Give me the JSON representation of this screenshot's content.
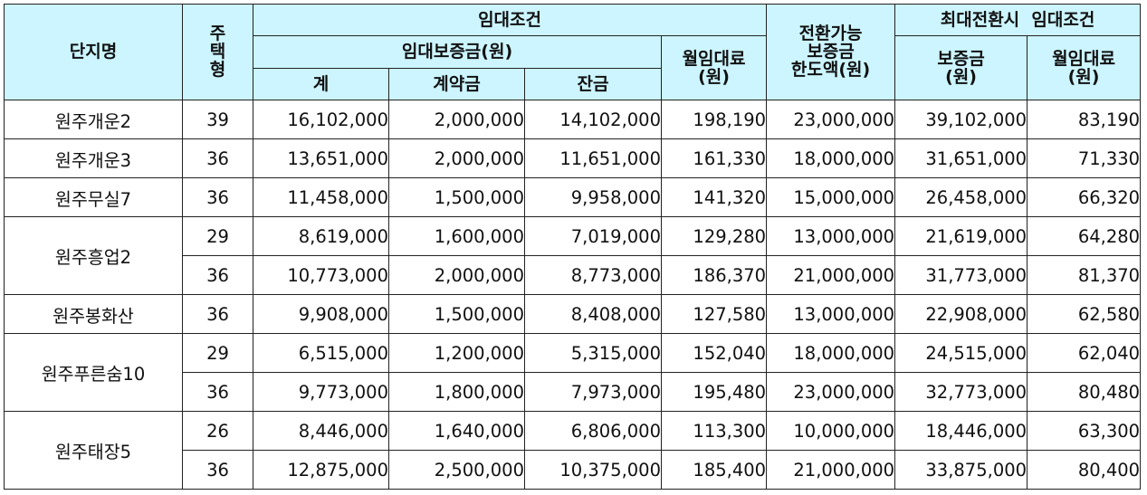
{
  "headers": {
    "complex_name": "단지명",
    "house_type": "주택형",
    "rent_terms": "임대조건",
    "rent_deposit": "임대보증금(원)",
    "deposit_total": "계",
    "contract_payment": "계약금",
    "balance_payment": "잔금",
    "monthly_rent": "월임대료\n(원)",
    "convertible_limit": "전환가능\n보증금\n한도액(원)",
    "max_conversion_terms": "최대전환시  임대조건",
    "max_deposit": "보증금\n(원)",
    "max_monthly_rent": "월임대료\n(원)"
  },
  "complexes": [
    {
      "name": "원주개운2",
      "rows": [
        {
          "type": "39",
          "total": "16,102,000",
          "contract": "2,000,000",
          "balance": "14,102,000",
          "rent": "198,190",
          "limit": "23,000,000",
          "max_deposit": "39,102,000",
          "max_rent": "83,190"
        }
      ]
    },
    {
      "name": "원주개운3",
      "rows": [
        {
          "type": "36",
          "total": "13,651,000",
          "contract": "2,000,000",
          "balance": "11,651,000",
          "rent": "161,330",
          "limit": "18,000,000",
          "max_deposit": "31,651,000",
          "max_rent": "71,330"
        }
      ]
    },
    {
      "name": "원주무실7",
      "rows": [
        {
          "type": "36",
          "total": "11,458,000",
          "contract": "1,500,000",
          "balance": "9,958,000",
          "rent": "141,320",
          "limit": "15,000,000",
          "max_deposit": "26,458,000",
          "max_rent": "66,320"
        }
      ]
    },
    {
      "name": "원주흥업2",
      "rows": [
        {
          "type": "29",
          "total": "8,619,000",
          "contract": "1,600,000",
          "balance": "7,019,000",
          "rent": "129,280",
          "limit": "13,000,000",
          "max_deposit": "21,619,000",
          "max_rent": "64,280"
        },
        {
          "type": "36",
          "total": "10,773,000",
          "contract": "2,000,000",
          "balance": "8,773,000",
          "rent": "186,370",
          "limit": "21,000,000",
          "max_deposit": "31,773,000",
          "max_rent": "81,370"
        }
      ]
    },
    {
      "name": "원주봉화산",
      "rows": [
        {
          "type": "36",
          "total": "9,908,000",
          "contract": "1,500,000",
          "balance": "8,408,000",
          "rent": "127,580",
          "limit": "13,000,000",
          "max_deposit": "22,908,000",
          "max_rent": "62,580"
        }
      ]
    },
    {
      "name": "원주푸른숨10",
      "rows": [
        {
          "type": "29",
          "total": "6,515,000",
          "contract": "1,200,000",
          "balance": "5,315,000",
          "rent": "152,040",
          "limit": "18,000,000",
          "max_deposit": "24,515,000",
          "max_rent": "62,040"
        },
        {
          "type": "36",
          "total": "9,773,000",
          "contract": "1,800,000",
          "balance": "7,973,000",
          "rent": "195,480",
          "limit": "23,000,000",
          "max_deposit": "32,773,000",
          "max_rent": "80,480"
        }
      ]
    },
    {
      "name": "원주태장5",
      "rows": [
        {
          "type": "26",
          "total": "8,446,000",
          "contract": "1,640,000",
          "balance": "6,806,000",
          "rent": "113,300",
          "limit": "10,000,000",
          "max_deposit": "18,446,000",
          "max_rent": "63,300"
        },
        {
          "type": "36",
          "total": "12,875,000",
          "contract": "2,500,000",
          "balance": "10,375,000",
          "rent": "185,400",
          "limit": "21,000,000",
          "max_deposit": "33,875,000",
          "max_rent": "80,400"
        }
      ]
    }
  ]
}
